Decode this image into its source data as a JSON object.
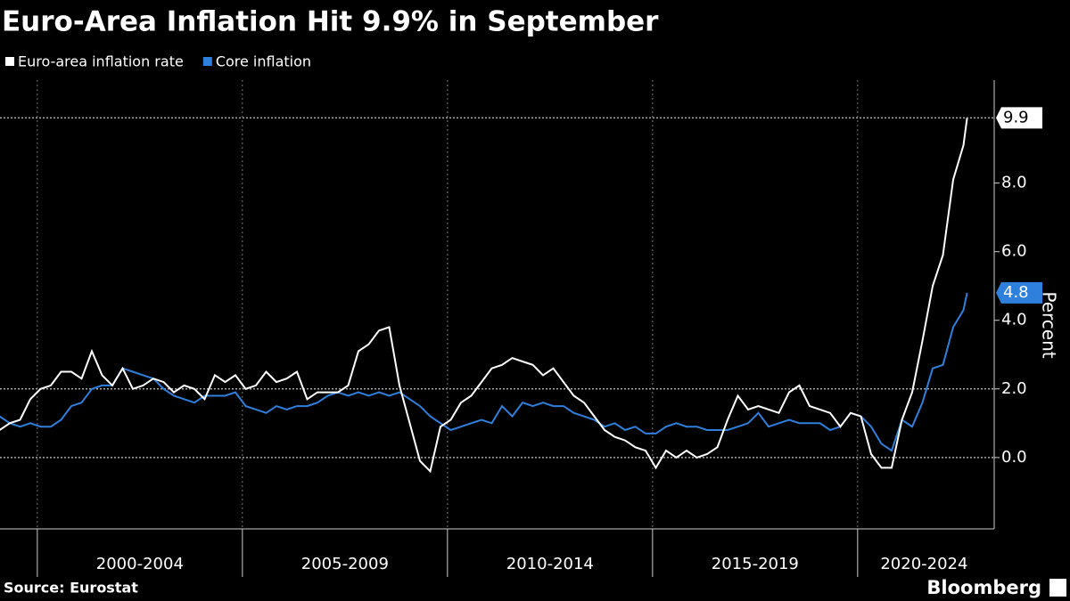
{
  "chart_data": {
    "type": "line",
    "title": "Euro-Area Inflation Hit 9.9% in September",
    "source": "Source: Eurostat",
    "brand": "Bloomberg",
    "y_axis_label": "Percent",
    "x": [
      1999.08,
      1999.33,
      1999.58,
      1999.83,
      2000.08,
      2000.33,
      2000.58,
      2000.83,
      2001.08,
      2001.33,
      2001.58,
      2001.83,
      2002.08,
      2002.33,
      2002.58,
      2002.83,
      2003.08,
      2003.33,
      2003.58,
      2003.83,
      2004.08,
      2004.33,
      2004.58,
      2004.83,
      2005.08,
      2005.33,
      2005.58,
      2005.83,
      2006.08,
      2006.33,
      2006.58,
      2006.83,
      2007.08,
      2007.33,
      2007.58,
      2007.83,
      2008.08,
      2008.33,
      2008.58,
      2008.83,
      2009.08,
      2009.33,
      2009.58,
      2009.83,
      2010.08,
      2010.33,
      2010.58,
      2010.83,
      2011.08,
      2011.33,
      2011.58,
      2011.83,
      2012.08,
      2012.33,
      2012.58,
      2012.83,
      2013.08,
      2013.33,
      2013.58,
      2013.83,
      2014.08,
      2014.33,
      2014.58,
      2014.83,
      2015.08,
      2015.33,
      2015.58,
      2015.83,
      2016.08,
      2016.33,
      2016.58,
      2016.83,
      2017.08,
      2017.33,
      2017.58,
      2017.83,
      2018.08,
      2018.33,
      2018.58,
      2018.83,
      2019.08,
      2019.33,
      2019.58,
      2019.83,
      2020.08,
      2020.33,
      2020.58,
      2020.83,
      2021.08,
      2021.33,
      2021.58,
      2021.83,
      2022.08,
      2022.33,
      2022.58,
      2022.67
    ],
    "series": [
      {
        "name": "Euro-area inflation rate",
        "color": "#ffffff",
        "last_label": "9.9",
        "values": [
          0.8,
          1.0,
          1.1,
          1.7,
          2.0,
          2.1,
          2.5,
          2.5,
          2.3,
          3.1,
          2.4,
          2.1,
          2.6,
          2.0,
          2.1,
          2.3,
          2.2,
          1.9,
          2.1,
          2.0,
          1.7,
          2.4,
          2.2,
          2.4,
          2.0,
          2.1,
          2.5,
          2.2,
          2.3,
          2.5,
          1.7,
          1.9,
          1.9,
          1.9,
          2.1,
          3.1,
          3.3,
          3.7,
          3.8,
          2.1,
          1.0,
          -0.1,
          -0.4,
          0.9,
          1.1,
          1.6,
          1.8,
          2.2,
          2.6,
          2.7,
          2.9,
          2.8,
          2.7,
          2.4,
          2.6,
          2.2,
          1.8,
          1.6,
          1.2,
          0.8,
          0.6,
          0.5,
          0.3,
          0.2,
          -0.3,
          0.2,
          0.0,
          0.2,
          0.0,
          0.1,
          0.3,
          1.1,
          1.8,
          1.4,
          1.5,
          1.4,
          1.3,
          1.9,
          2.1,
          1.5,
          1.4,
          1.3,
          0.9,
          1.3,
          1.2,
          0.1,
          -0.3,
          -0.3,
          1.1,
          1.9,
          3.4,
          5.0,
          5.9,
          8.1,
          9.1,
          9.9
        ]
      },
      {
        "name": "Core inflation",
        "color": "#2f7fdc",
        "last_label": "4.8",
        "values": [
          1.2,
          1.0,
          0.9,
          1.0,
          0.9,
          0.9,
          1.1,
          1.5,
          1.6,
          2.0,
          2.1,
          2.1,
          2.6,
          2.5,
          2.4,
          2.3,
          2.0,
          1.8,
          1.7,
          1.6,
          1.8,
          1.8,
          1.8,
          1.9,
          1.5,
          1.4,
          1.3,
          1.5,
          1.4,
          1.5,
          1.5,
          1.6,
          1.8,
          1.9,
          1.8,
          1.9,
          1.8,
          1.9,
          1.8,
          1.9,
          1.7,
          1.5,
          1.2,
          1.0,
          0.8,
          0.9,
          1.0,
          1.1,
          1.0,
          1.5,
          1.2,
          1.6,
          1.5,
          1.6,
          1.5,
          1.5,
          1.3,
          1.2,
          1.1,
          0.9,
          1.0,
          0.8,
          0.9,
          0.7,
          0.7,
          0.9,
          1.0,
          0.9,
          0.9,
          0.8,
          0.8,
          0.8,
          0.9,
          1.0,
          1.3,
          0.9,
          1.0,
          1.1,
          1.0,
          1.0,
          1.0,
          0.8,
          0.9,
          1.3,
          1.2,
          0.9,
          0.4,
          0.2,
          1.1,
          0.9,
          1.6,
          2.6,
          2.7,
          3.8,
          4.3,
          4.8
        ]
      }
    ],
    "xlim": [
      1999.09,
      2023.33
    ],
    "ylim": [
      -2.08,
      11.0
    ],
    "yticks": [
      {
        "value": 0,
        "label": "0.0"
      },
      {
        "value": 2,
        "label": "2.0"
      },
      {
        "value": 4,
        "label": "4.0"
      },
      {
        "value": 6,
        "label": "6.0"
      },
      {
        "value": 8,
        "label": "8.0"
      }
    ],
    "grid_lines": [
      0,
      2
    ],
    "periods": [
      {
        "label": "2000-2004",
        "start": 2000,
        "end": 2005
      },
      {
        "label": "2005-2009",
        "start": 2005,
        "end": 2010
      },
      {
        "label": "2010-2014",
        "start": 2010,
        "end": 2015
      },
      {
        "label": "2015-2019",
        "start": 2015,
        "end": 2020
      },
      {
        "label": "2020-2024",
        "start": 2020,
        "end": 2025
      }
    ]
  }
}
